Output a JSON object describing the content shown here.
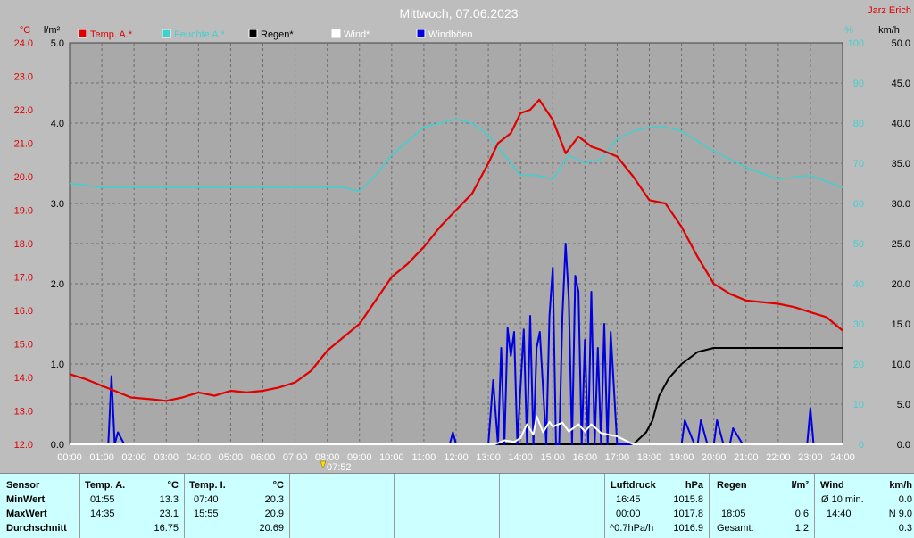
{
  "title": "Mittwoch, 07.06.2023",
  "author": "Jarz Erich",
  "units": {
    "temp": "°C",
    "rain": "l/m²",
    "hum": "%",
    "wind": "km/h"
  },
  "colors": {
    "temp": "#e00000",
    "hum": "#40d0d0",
    "rain": "#000000",
    "wind": "#ffffff",
    "gust": "#0000e0",
    "bg": "#bdbdbd",
    "plot": "#a9a9a9"
  },
  "chart_data": {
    "type": "line",
    "title": "Mittwoch, 07.06.2023",
    "x_unit": "hour",
    "xlim": [
      0,
      24
    ],
    "x_ticks": [
      "00:00",
      "01:00",
      "02:00",
      "03:00",
      "04:00",
      "05:00",
      "06:00",
      "07:00",
      "08:00",
      "09:00",
      "10:00",
      "11:00",
      "12:00",
      "13:00",
      "14:00",
      "15:00",
      "16:00",
      "17:00",
      "18:00",
      "19:00",
      "20:00",
      "21:00",
      "22:00",
      "23:00",
      "24:00"
    ],
    "sunrise_label": "07:52",
    "sunrise_hour": 7.87,
    "axes": {
      "temp": {
        "label": "°C",
        "lim": [
          12,
          24
        ],
        "ticks": [
          "12.0",
          "13.0",
          "14.0",
          "15.0",
          "16.0",
          "17.0",
          "18.0",
          "19.0",
          "20.0",
          "21.0",
          "22.0",
          "23.0",
          "24.0"
        ]
      },
      "rain": {
        "label": "l/m²",
        "lim": [
          0,
          5
        ],
        "ticks": [
          "0.0",
          "1.0",
          "2.0",
          "3.0",
          "4.0",
          "5.0"
        ]
      },
      "hum": {
        "label": "%",
        "lim": [
          0,
          100
        ],
        "ticks": [
          "0",
          "10",
          "20",
          "30",
          "40",
          "50",
          "60",
          "70",
          "80",
          "90",
          "100"
        ]
      },
      "wind": {
        "label": "km/h",
        "lim": [
          0,
          50
        ],
        "ticks": [
          "0.0",
          "5.0",
          "10.0",
          "15.0",
          "20.0",
          "25.0",
          "30.0",
          "35.0",
          "40.0",
          "45.0",
          "50.0"
        ]
      }
    },
    "legend": [
      "Temp. A.*",
      "Feuchte A.*",
      "Regen*",
      "Wind*",
      "Windböen"
    ],
    "series": [
      {
        "name": "Temp. A.*",
        "axis": "temp",
        "x": [
          0,
          0.5,
          1,
          1.4,
          1.9,
          2.5,
          3,
          3.5,
          4,
          4.5,
          5,
          5.5,
          6,
          6.5,
          7,
          7.5,
          8,
          8.5,
          9,
          9.5,
          10,
          10.5,
          11,
          11.5,
          12,
          12.5,
          13,
          13.3,
          13.7,
          14,
          14.3,
          14.58,
          15,
          15.4,
          15.8,
          16.2,
          16.5,
          17,
          17.5,
          18,
          18.5,
          19,
          19.5,
          20,
          20.5,
          21,
          21.5,
          22,
          22.5,
          23,
          23.5,
          24
        ],
        "y": [
          14.1,
          13.95,
          13.75,
          13.6,
          13.4,
          13.35,
          13.3,
          13.4,
          13.55,
          13.45,
          13.6,
          13.55,
          13.6,
          13.7,
          13.85,
          14.2,
          14.8,
          15.2,
          15.6,
          16.3,
          17.0,
          17.4,
          17.9,
          18.5,
          19.0,
          19.5,
          20.4,
          21.0,
          21.3,
          21.9,
          22.0,
          22.3,
          21.7,
          20.7,
          21.2,
          20.9,
          20.8,
          20.6,
          20.0,
          19.3,
          19.2,
          18.5,
          17.6,
          16.8,
          16.5,
          16.3,
          16.25,
          16.2,
          16.1,
          15.95,
          15.8,
          15.4
        ]
      },
      {
        "name": "Feuchte A.*",
        "axis": "hum",
        "x": [
          0,
          1,
          1.3,
          2,
          3,
          4,
          5,
          6,
          7,
          8,
          8.5,
          9,
          9.5,
          10,
          11,
          11.5,
          12,
          12.5,
          13,
          13.5,
          14,
          14.5,
          15,
          15.5,
          16,
          16.5,
          17,
          17.5,
          18,
          18.5,
          19,
          20,
          21,
          22,
          23,
          24
        ],
        "y": [
          65,
          64,
          64,
          64,
          64,
          64,
          64,
          64,
          64,
          64,
          64,
          63,
          67,
          72,
          79,
          80,
          81,
          80,
          77,
          72,
          67,
          67,
          66,
          72,
          70,
          71,
          76,
          78,
          79,
          79,
          78,
          73,
          69,
          66,
          67,
          64
        ]
      },
      {
        "name": "Regen*",
        "axis": "rain",
        "x": [
          0,
          17.5,
          17.9,
          18.1,
          18.3,
          18.6,
          19,
          19.5,
          20,
          21,
          22,
          23,
          24
        ],
        "y": [
          0,
          0,
          0.15,
          0.3,
          0.6,
          0.82,
          1.0,
          1.15,
          1.2,
          1.2,
          1.2,
          1.2,
          1.2
        ]
      },
      {
        "name": "Wind*",
        "axis": "wind",
        "x": [
          0,
          13.2,
          13.5,
          13.8,
          14,
          14.2,
          14.4,
          14.5,
          14.7,
          14.9,
          15,
          15.3,
          15.5,
          15.8,
          16,
          16.2,
          16.5,
          17,
          17.5,
          18,
          24
        ],
        "y": [
          0,
          0,
          0.5,
          0.3,
          0.8,
          2.5,
          1.2,
          3.5,
          1.5,
          2.8,
          2.2,
          2.7,
          1.6,
          2.5,
          1.6,
          2.5,
          1.4,
          1.0,
          0,
          0,
          0
        ]
      },
      {
        "name": "Windböen",
        "axis": "wind",
        "x": [
          0,
          1.2,
          1.3,
          1.4,
          1.5,
          1.7,
          1.8,
          11.8,
          11.9,
          12.0,
          13.0,
          13.15,
          13.3,
          13.4,
          13.5,
          13.6,
          13.7,
          13.8,
          13.9,
          14.1,
          14.2,
          14.3,
          14.4,
          14.5,
          14.6,
          14.8,
          14.9,
          15.0,
          15.1,
          15.2,
          15.3,
          15.4,
          15.5,
          15.6,
          15.7,
          15.8,
          15.9,
          16.0,
          16.1,
          16.2,
          16.3,
          16.4,
          16.5,
          16.6,
          16.7,
          16.8,
          17.0,
          18.9,
          19.0,
          19.1,
          19.4,
          19.5,
          19.6,
          19.8,
          20.0,
          20.1,
          20.3,
          20.5,
          20.6,
          20.9,
          21.0,
          21.1,
          22.9,
          23.0,
          23.1,
          24
        ],
        "y": [
          0,
          0,
          8.5,
          0,
          1.5,
          0,
          0,
          0,
          1.5,
          0,
          0,
          8,
          0,
          12,
          0,
          14.5,
          11,
          14,
          0,
          14.3,
          0,
          16,
          0,
          12,
          14,
          0,
          16,
          22,
          0,
          0,
          16,
          25,
          18,
          0,
          21,
          19,
          0,
          13,
          0,
          19,
          0,
          12,
          0,
          15,
          0,
          14,
          0,
          0,
          0,
          3,
          0,
          0,
          3,
          0,
          0,
          3,
          0,
          0,
          2,
          0,
          0,
          0,
          0,
          4.5,
          0,
          0
        ]
      }
    ]
  },
  "stats": {
    "sensor": {
      "header": "Sensor",
      "rows": [
        "MinWert",
        "MaxWert",
        "Durchschnitt"
      ]
    },
    "temp_a": {
      "header": "Temp. A.",
      "unit": "°C",
      "rows": [
        [
          "01:55",
          "13.3"
        ],
        [
          "14:35",
          "23.1"
        ],
        [
          "",
          "16.75"
        ]
      ]
    },
    "temp_i": {
      "header": "Temp. I.",
      "unit": "°C",
      "rows": [
        [
          "07:40",
          "20.3"
        ],
        [
          "15:55",
          "20.9"
        ],
        [
          "",
          "20.69"
        ]
      ]
    },
    "pressure": {
      "header": "Luftdruck",
      "unit": "hPa",
      "rows": [
        [
          "16:45",
          "1015.8"
        ],
        [
          "00:00",
          "1017.8"
        ],
        [
          "^0.7hPa/h",
          "1016.9"
        ]
      ]
    },
    "rain": {
      "header": "Regen",
      "unit": "l/m²",
      "rows": [
        [
          "",
          ""
        ],
        [
          "18:05",
          "0.6"
        ],
        [
          "Gesamt:",
          "1.2"
        ]
      ]
    },
    "wind": {
      "header": "Wind",
      "unit": "km/h",
      "rows": [
        [
          "Ø 10 min.",
          "0.0"
        ],
        [
          "14:40",
          "N 9.0"
        ],
        [
          "",
          "0.3"
        ]
      ]
    }
  }
}
